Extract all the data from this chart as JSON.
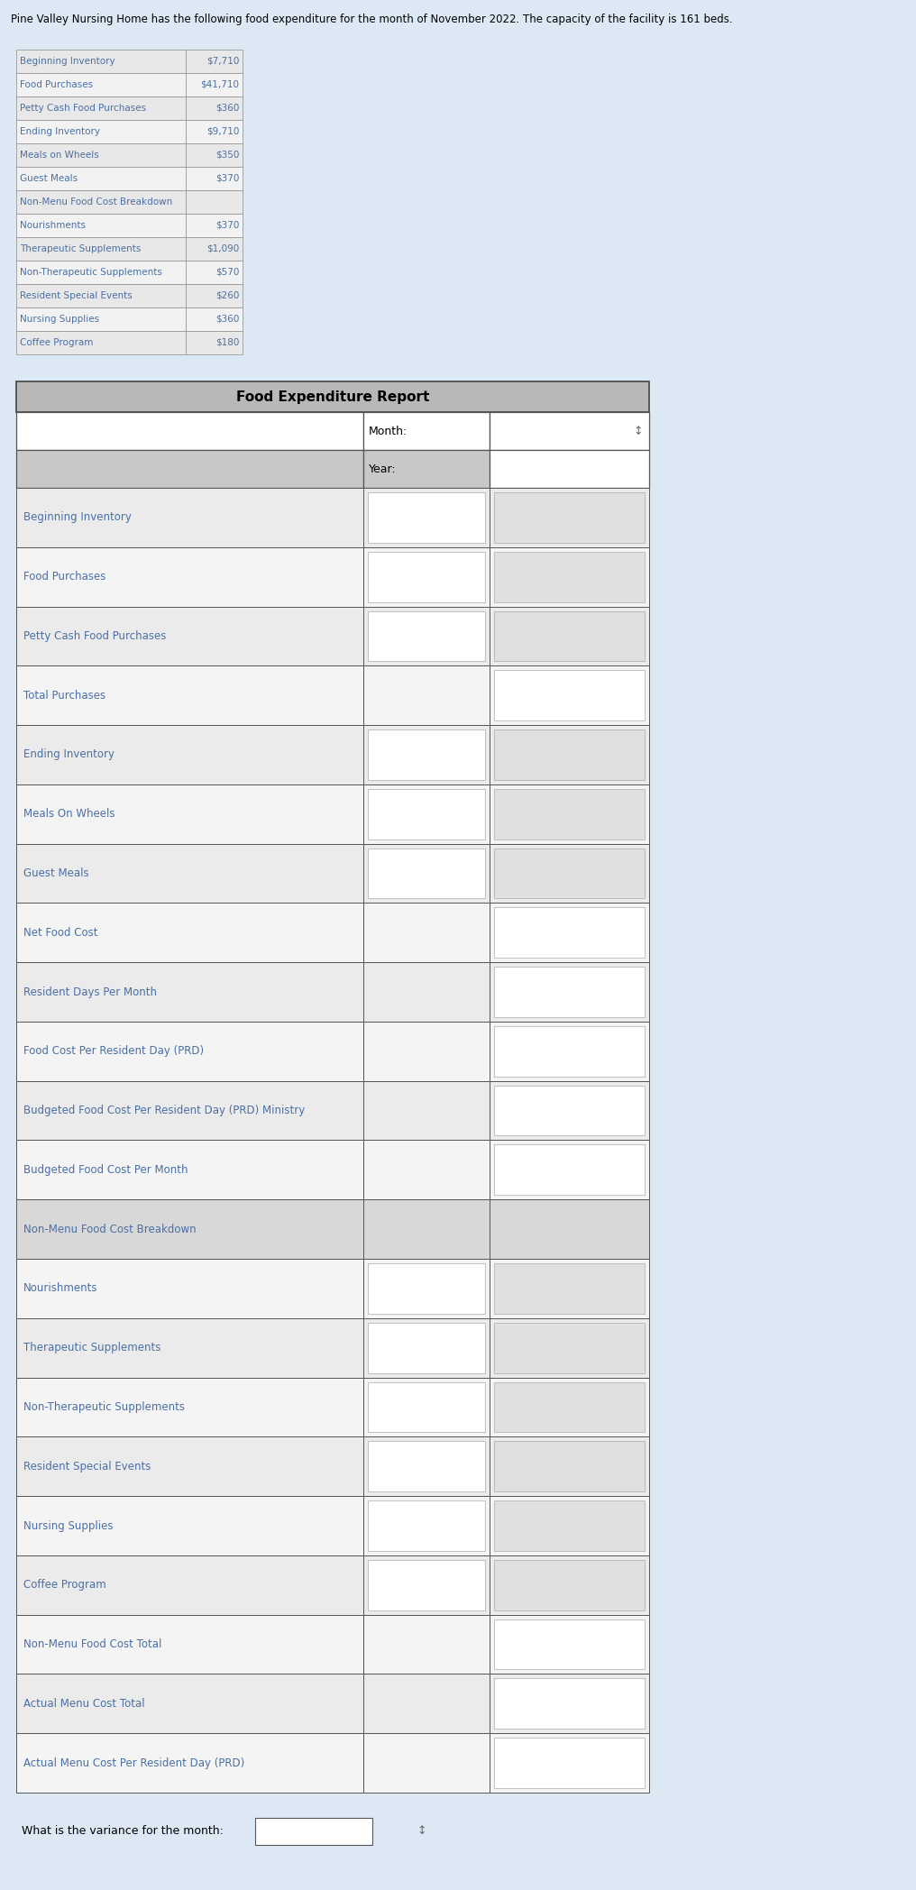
{
  "header_text": "Pine Valley Nursing Home has the following food expenditure for the month of November 2022. The capacity of the facility is 161 beds.",
  "input_table_rows": [
    [
      "Beginning Inventory",
      "$7,710"
    ],
    [
      "Food Purchases",
      "$41,710"
    ],
    [
      "Petty Cash Food Purchases",
      "$360"
    ],
    [
      "Ending Inventory",
      "$9,710"
    ],
    [
      "Meals on Wheels",
      "$350"
    ],
    [
      "Guest Meals",
      "$370"
    ],
    [
      "Non-Menu Food Cost Breakdown",
      ""
    ],
    [
      "Nourishments",
      "$370"
    ],
    [
      "Therapeutic Supplements",
      "$1,090"
    ],
    [
      "Non-Therapeutic Supplements",
      "$570"
    ],
    [
      "Resident Special Events",
      "$260"
    ],
    [
      "Nursing Supplies",
      "$360"
    ],
    [
      "Coffee Program",
      "$180"
    ]
  ],
  "report_title": "Food Expenditure Report",
  "report_rows": [
    {
      "label": "Beginning Inventory",
      "type": "input"
    },
    {
      "label": "Food Purchases",
      "type": "input"
    },
    {
      "label": "Petty Cash Food Purchases",
      "type": "input"
    },
    {
      "label": "Total Purchases",
      "type": "white_right"
    },
    {
      "label": "Ending Inventory",
      "type": "input"
    },
    {
      "label": "Meals On Wheels",
      "type": "input"
    },
    {
      "label": "Guest Meals",
      "type": "input"
    },
    {
      "label": "Net Food Cost",
      "type": "white_right"
    },
    {
      "label": "Resident Days Per Month",
      "type": "white_right"
    },
    {
      "label": "Food Cost Per Resident Day (PRD)",
      "type": "white_right"
    },
    {
      "label": "Budgeted Food Cost Per Resident Day (PRD) Ministry",
      "type": "white_right"
    },
    {
      "label": "Budgeted Food Cost Per Month",
      "type": "white_right"
    },
    {
      "label": "Non-Menu Food Cost Breakdown",
      "type": "header"
    },
    {
      "label": "Nourishments",
      "type": "input"
    },
    {
      "label": "Therapeutic Supplements",
      "type": "input"
    },
    {
      "label": "Non-Therapeutic Supplements",
      "type": "input"
    },
    {
      "label": "Resident Special Events",
      "type": "input"
    },
    {
      "label": "Nursing Supplies",
      "type": "input"
    },
    {
      "label": "Coffee Program",
      "type": "input"
    },
    {
      "label": "Non-Menu Food Cost Total",
      "type": "white_right"
    },
    {
      "label": "Actual Menu Cost Total",
      "type": "white_right"
    },
    {
      "label": "Actual Menu Cost Per Resident Day (PRD)",
      "type": "white_right"
    }
  ],
  "variance_label": "What is the variance for the month:",
  "bg_color": "#dce9f5",
  "text_blue": "#4a6fa5",
  "header_gray": "#b8b8b8",
  "row_light": "#f0f0f0",
  "row_gray": "#e0e0e0",
  "white": "#ffffff",
  "border_dark": "#555555",
  "border_light": "#aaaaaa"
}
